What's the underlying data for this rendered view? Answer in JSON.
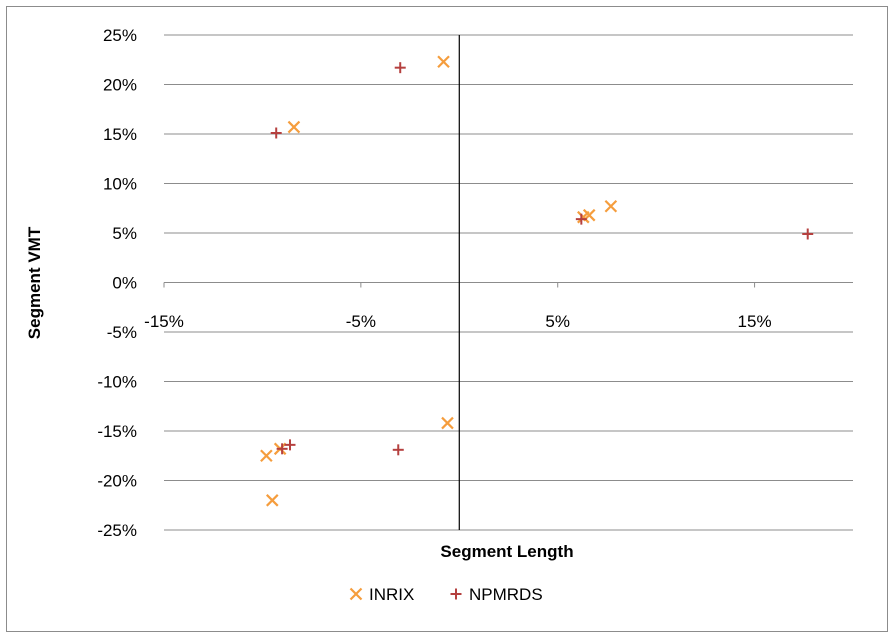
{
  "chart_data": {
    "type": "scatter",
    "title": "",
    "xlabel": "Segment Length",
    "ylabel": "Segment VMT",
    "xlim": [
      -15,
      20
    ],
    "ylim": [
      -25,
      25
    ],
    "x_ticks": [
      -15,
      -5,
      5,
      15
    ],
    "x_tick_labels": [
      "-15%",
      "-5%",
      "5%",
      "15%"
    ],
    "y_ticks": [
      25,
      20,
      15,
      10,
      5,
      0,
      -5,
      -10,
      -15,
      -20,
      -25
    ],
    "y_tick_labels": [
      "25%",
      "20%",
      "15%",
      "10%",
      "5%",
      "0%",
      "-5%",
      "-10%",
      "-15%",
      "-20%",
      "-25%"
    ],
    "grid": "horizontal",
    "legend_position": "bottom",
    "series": [
      {
        "name": "INRIX",
        "marker": "x",
        "color": "#f59d3d",
        "points": [
          {
            "x": -0.8,
            "y": 22.3
          },
          {
            "x": -8.4,
            "y": 15.7
          },
          {
            "x": 6.6,
            "y": 6.8
          },
          {
            "x": 7.7,
            "y": 7.7
          },
          {
            "x": 6.3,
            "y": 6.6
          },
          {
            "x": -0.6,
            "y": -14.2
          },
          {
            "x": -9.8,
            "y": -17.5
          },
          {
            "x": -9.5,
            "y": -22.0
          },
          {
            "x": -9.1,
            "y": -16.8
          }
        ]
      },
      {
        "name": "NPMRDS",
        "marker": "+",
        "color": "#b5403f",
        "points": [
          {
            "x": -3.0,
            "y": 21.7
          },
          {
            "x": -9.3,
            "y": 15.1
          },
          {
            "x": 6.2,
            "y": 6.4
          },
          {
            "x": 17.7,
            "y": 4.9
          },
          {
            "x": -3.1,
            "y": -16.9
          },
          {
            "x": -9.0,
            "y": -16.8
          },
          {
            "x": -8.6,
            "y": -16.4
          }
        ]
      }
    ]
  }
}
